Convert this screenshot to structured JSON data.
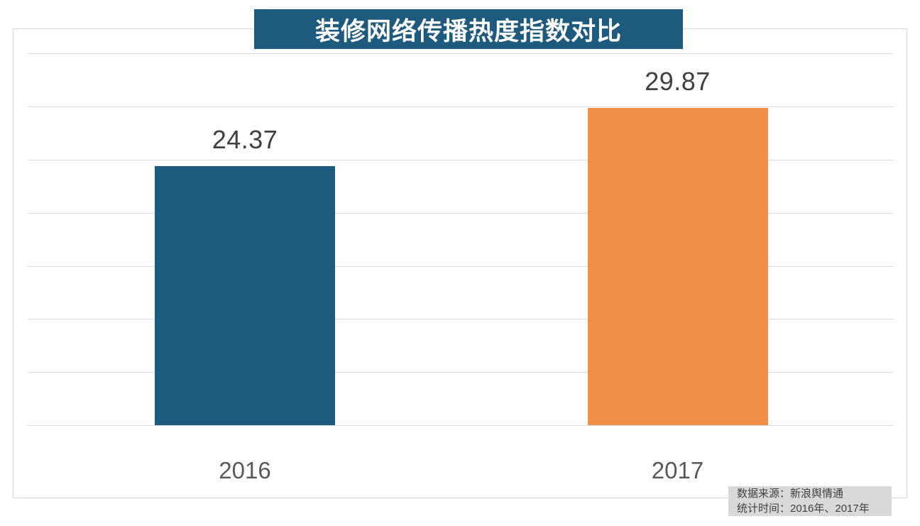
{
  "title_banner": {
    "text": "装修网络传播热度指数对比"
  },
  "chart_data": {
    "type": "bar",
    "title": "装修网络传播热度指数对比",
    "categories": [
      "2016",
      "2017"
    ],
    "values": [
      24.37,
      29.87
    ],
    "value_labels": [
      "24.37",
      "29.87"
    ],
    "series_colors": [
      "#1d5a7d",
      "#ef8f4a"
    ],
    "xlabel": "",
    "ylabel": "",
    "ylim": [
      0,
      35
    ],
    "grid_step": 5,
    "grid": true,
    "legend": false
  },
  "footer_note": {
    "source_line": "数据来源：新浪舆情通",
    "time_line": "统计时间：2016年、2017年"
  },
  "colors": {
    "accent_teal": "#1d5a7d",
    "accent_orange": "#ef8f4a",
    "gridline": "#dddddd",
    "plot_border": "#d8d8d8",
    "value_label_text": "#404040",
    "axis_label_text": "#595959",
    "footer_bg": "#d9d9d9",
    "footer_text": "#404040",
    "title_text": "#ffffff"
  }
}
